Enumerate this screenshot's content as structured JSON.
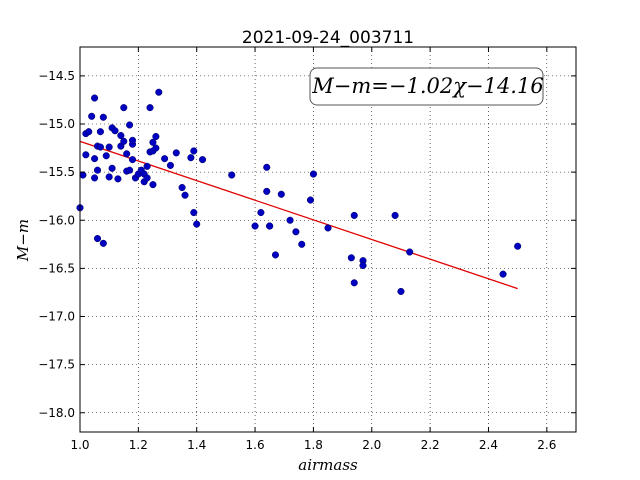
{
  "chart_data": {
    "type": "scatter",
    "title": "2021-09-24_003711",
    "xlabel": "airmass",
    "ylabel": "M−m",
    "xlim": [
      1.0,
      2.7
    ],
    "ylim": [
      -18.2,
      -14.2
    ],
    "y_inverted": true,
    "x_ticks": [
      1.0,
      1.2,
      1.4,
      1.6,
      1.8,
      2.0,
      2.2,
      2.4,
      2.6
    ],
    "x_tick_labels": [
      "1.0",
      "1.2",
      "1.4",
      "1.6",
      "1.8",
      "2.0",
      "2.2",
      "2.4",
      "2.6"
    ],
    "y_ticks": [
      -14.5,
      -15.0,
      -15.5,
      -16.0,
      -16.5,
      -17.0,
      -17.5,
      -18.0
    ],
    "y_tick_labels": [
      "−14.5",
      "−15.0",
      "−15.5",
      "−16.0",
      "−16.5",
      "−17.0",
      "−17.5",
      "−18.0"
    ],
    "grid": true,
    "annotation": "M−m=−1.02χ−14.16",
    "annotation_position": "top-right",
    "colors": {
      "points": "#0000c0",
      "fit": "#e00000"
    },
    "fit_line": {
      "slope": -1.02,
      "intercept": -14.16,
      "x_range": [
        1.0,
        2.5
      ]
    },
    "series": [
      {
        "marker": "circle",
        "x": [
          1.0,
          1.01,
          1.02,
          1.02,
          1.03,
          1.04,
          1.05,
          1.05,
          1.05,
          1.06,
          1.06,
          1.06,
          1.07,
          1.07,
          1.08,
          1.08,
          1.09,
          1.1,
          1.1,
          1.11,
          1.11,
          1.12,
          1.13,
          1.14,
          1.14,
          1.15,
          1.15,
          1.16,
          1.16,
          1.17,
          1.17,
          1.18,
          1.18,
          1.18,
          1.19,
          1.2,
          1.21,
          1.22,
          1.22,
          1.23,
          1.23,
          1.24,
          1.24,
          1.25,
          1.25,
          1.25,
          1.26,
          1.26,
          1.27,
          1.29,
          1.31,
          1.33,
          1.35,
          1.36,
          1.38,
          1.39,
          1.39,
          1.4,
          1.42,
          1.52,
          1.6,
          1.62,
          1.64,
          1.64,
          1.65,
          1.65,
          1.67,
          1.69,
          1.72,
          1.74,
          1.76,
          1.79,
          1.8,
          1.85,
          1.93,
          1.94,
          1.94,
          1.97,
          1.97,
          2.08,
          2.1,
          2.13,
          2.45,
          2.5
        ],
        "y": [
          -15.87,
          -15.53,
          -15.32,
          -15.1,
          -15.08,
          -14.92,
          -14.73,
          -15.36,
          -15.56,
          -16.19,
          -15.48,
          -15.23,
          -15.08,
          -15.24,
          -14.93,
          -16.24,
          -15.33,
          -15.24,
          -15.55,
          -15.04,
          -15.46,
          -15.07,
          -15.57,
          -15.23,
          -15.12,
          -14.83,
          -15.18,
          -15.49,
          -15.31,
          -15.01,
          -15.48,
          -15.37,
          -15.21,
          -15.17,
          -15.56,
          -15.52,
          -15.48,
          -15.6,
          -15.52,
          -15.44,
          -15.56,
          -14.83,
          -15.29,
          -15.63,
          -15.28,
          -15.19,
          -15.13,
          -15.25,
          -14.67,
          -15.36,
          -15.43,
          -15.3,
          -15.66,
          -15.74,
          -15.35,
          -15.28,
          -15.92,
          -16.04,
          -15.37,
          -15.53,
          -16.06,
          -15.92,
          -15.45,
          -15.7,
          -16.06,
          -16.06,
          -16.36,
          -15.73,
          -16.0,
          -16.12,
          -16.25,
          -15.79,
          -15.52,
          -16.08,
          -16.39,
          -15.95,
          -16.65,
          -16.42,
          -16.47,
          -15.95,
          -16.74,
          -16.33,
          -16.56,
          -16.27
        ]
      }
    ]
  }
}
